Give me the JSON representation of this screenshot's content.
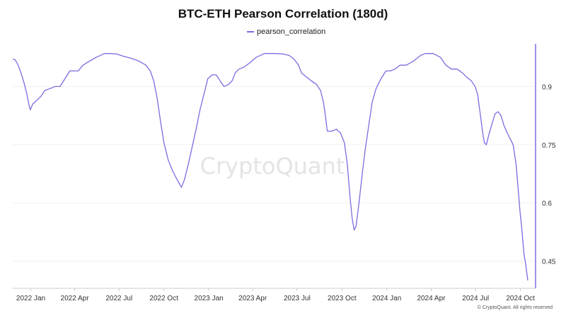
{
  "chart_data": {
    "type": "line",
    "title": "BTC-ETH Pearson Correlation (180d)",
    "xlabel": "",
    "ylabel": "",
    "ylim": [
      0.38,
      1.01
    ],
    "y_axis_position": "right",
    "x_ticks": [
      "2022 Jan",
      "2022 Apr",
      "2022 Jul",
      "2022 Oct",
      "2023 Jan",
      "2023 Apr",
      "2023 Jul",
      "2023 Oct",
      "2024 Jan",
      "2024 Apr",
      "2024 Jul",
      "2024 Oct"
    ],
    "y_ticks": [
      0.45,
      0.6,
      0.75,
      0.9
    ],
    "y_tick_labels": [
      "0.45",
      "0.6",
      "0.75",
      "0.9"
    ],
    "grid": "horizontal",
    "legend_position": "top-center",
    "series": [
      {
        "name": "pearson_correlation",
        "color": "#7b6ce0",
        "points": [
          [
            "2021-11-25",
            0.97
          ],
          [
            "2021-11-30",
            0.969
          ],
          [
            "2021-12-06",
            0.955
          ],
          [
            "2021-12-12",
            0.935
          ],
          [
            "2021-12-18",
            0.91
          ],
          [
            "2021-12-24",
            0.88
          ],
          [
            "2021-12-28",
            0.855
          ],
          [
            "2021-12-31",
            0.84
          ],
          [
            "2022-01-05",
            0.855
          ],
          [
            "2022-01-14",
            0.865
          ],
          [
            "2022-01-22",
            0.875
          ],
          [
            "2022-01-30",
            0.89
          ],
          [
            "2022-02-10",
            0.895
          ],
          [
            "2022-02-20",
            0.9
          ],
          [
            "2022-03-02",
            0.9
          ],
          [
            "2022-03-12",
            0.92
          ],
          [
            "2022-03-22",
            0.94
          ],
          [
            "2022-04-02",
            0.94
          ],
          [
            "2022-04-08",
            0.94
          ],
          [
            "2022-04-18",
            0.955
          ],
          [
            "2022-05-01",
            0.965
          ],
          [
            "2022-05-15",
            0.975
          ],
          [
            "2022-06-01",
            0.985
          ],
          [
            "2022-06-10",
            0.985
          ],
          [
            "2022-06-25",
            0.984
          ],
          [
            "2022-07-10",
            0.978
          ],
          [
            "2022-07-25",
            0.973
          ],
          [
            "2022-08-10",
            0.966
          ],
          [
            "2022-08-25",
            0.955
          ],
          [
            "2022-09-03",
            0.94
          ],
          [
            "2022-09-10",
            0.915
          ],
          [
            "2022-09-17",
            0.87
          ],
          [
            "2022-09-24",
            0.81
          ],
          [
            "2022-10-01",
            0.755
          ],
          [
            "2022-10-10",
            0.71
          ],
          [
            "2022-10-18",
            0.685
          ],
          [
            "2022-10-26",
            0.665
          ],
          [
            "2022-11-06",
            0.64
          ],
          [
            "2022-11-12",
            0.66
          ],
          [
            "2022-11-20",
            0.7
          ],
          [
            "2022-11-28",
            0.745
          ],
          [
            "2022-12-06",
            0.79
          ],
          [
            "2022-12-14",
            0.84
          ],
          [
            "2022-12-22",
            0.88
          ],
          [
            "2022-12-30",
            0.92
          ],
          [
            "2023-01-08",
            0.93
          ],
          [
            "2023-01-16",
            0.93
          ],
          [
            "2023-01-24",
            0.915
          ],
          [
            "2023-02-01",
            0.9
          ],
          [
            "2023-02-10",
            0.905
          ],
          [
            "2023-02-18",
            0.915
          ],
          [
            "2023-02-24",
            0.935
          ],
          [
            "2023-03-04",
            0.945
          ],
          [
            "2023-03-14",
            0.95
          ],
          [
            "2023-03-25",
            0.96
          ],
          [
            "2023-04-08",
            0.975
          ],
          [
            "2023-04-25",
            0.985
          ],
          [
            "2023-05-15",
            0.985
          ],
          [
            "2023-06-01",
            0.984
          ],
          [
            "2023-06-15",
            0.98
          ],
          [
            "2023-06-25",
            0.97
          ],
          [
            "2023-07-04",
            0.955
          ],
          [
            "2023-07-10",
            0.935
          ],
          [
            "2023-07-20",
            0.925
          ],
          [
            "2023-07-30",
            0.915
          ],
          [
            "2023-08-10",
            0.905
          ],
          [
            "2023-08-18",
            0.89
          ],
          [
            "2023-08-24",
            0.86
          ],
          [
            "2023-08-28",
            0.825
          ],
          [
            "2023-09-01",
            0.785
          ],
          [
            "2023-09-10",
            0.785
          ],
          [
            "2023-09-20",
            0.79
          ],
          [
            "2023-09-28",
            0.78
          ],
          [
            "2023-10-06",
            0.755
          ],
          [
            "2023-10-12",
            0.7
          ],
          [
            "2023-10-18",
            0.61
          ],
          [
            "2023-10-22",
            0.56
          ],
          [
            "2023-10-26",
            0.53
          ],
          [
            "2023-10-30",
            0.54
          ],
          [
            "2023-11-05",
            0.6
          ],
          [
            "2023-11-12",
            0.68
          ],
          [
            "2023-11-18",
            0.74
          ],
          [
            "2023-11-25",
            0.8
          ],
          [
            "2023-12-02",
            0.86
          ],
          [
            "2023-12-10",
            0.895
          ],
          [
            "2023-12-20",
            0.92
          ],
          [
            "2023-12-30",
            0.94
          ],
          [
            "2024-01-08",
            0.94
          ],
          [
            "2024-01-18",
            0.945
          ],
          [
            "2024-01-28",
            0.955
          ],
          [
            "2024-02-10",
            0.955
          ],
          [
            "2024-02-24",
            0.965
          ],
          [
            "2024-03-10",
            0.98
          ],
          [
            "2024-03-20",
            0.985
          ],
          [
            "2024-04-05",
            0.985
          ],
          [
            "2024-04-20",
            0.975
          ],
          [
            "2024-05-01",
            0.955
          ],
          [
            "2024-05-12",
            0.945
          ],
          [
            "2024-05-24",
            0.945
          ],
          [
            "2024-06-04",
            0.935
          ],
          [
            "2024-06-12",
            0.925
          ],
          [
            "2024-06-22",
            0.915
          ],
          [
            "2024-06-30",
            0.9
          ],
          [
            "2024-07-05",
            0.88
          ],
          [
            "2024-07-10",
            0.835
          ],
          [
            "2024-07-15",
            0.785
          ],
          [
            "2024-07-19",
            0.755
          ],
          [
            "2024-07-23",
            0.75
          ],
          [
            "2024-07-28",
            0.775
          ],
          [
            "2024-08-04",
            0.805
          ],
          [
            "2024-08-10",
            0.83
          ],
          [
            "2024-08-16",
            0.835
          ],
          [
            "2024-08-22",
            0.825
          ],
          [
            "2024-08-28",
            0.8
          ],
          [
            "2024-09-04",
            0.78
          ],
          [
            "2024-09-10",
            0.765
          ],
          [
            "2024-09-16",
            0.75
          ],
          [
            "2024-09-22",
            0.7
          ],
          [
            "2024-09-26",
            0.64
          ],
          [
            "2024-09-30",
            0.58
          ],
          [
            "2024-10-04",
            0.53
          ],
          [
            "2024-10-08",
            0.47
          ],
          [
            "2024-10-12",
            0.44
          ],
          [
            "2024-10-16",
            0.4
          ]
        ]
      }
    ],
    "watermark": "CryptoQuant",
    "credit": "© CryptoQuant. All rights reserved"
  }
}
